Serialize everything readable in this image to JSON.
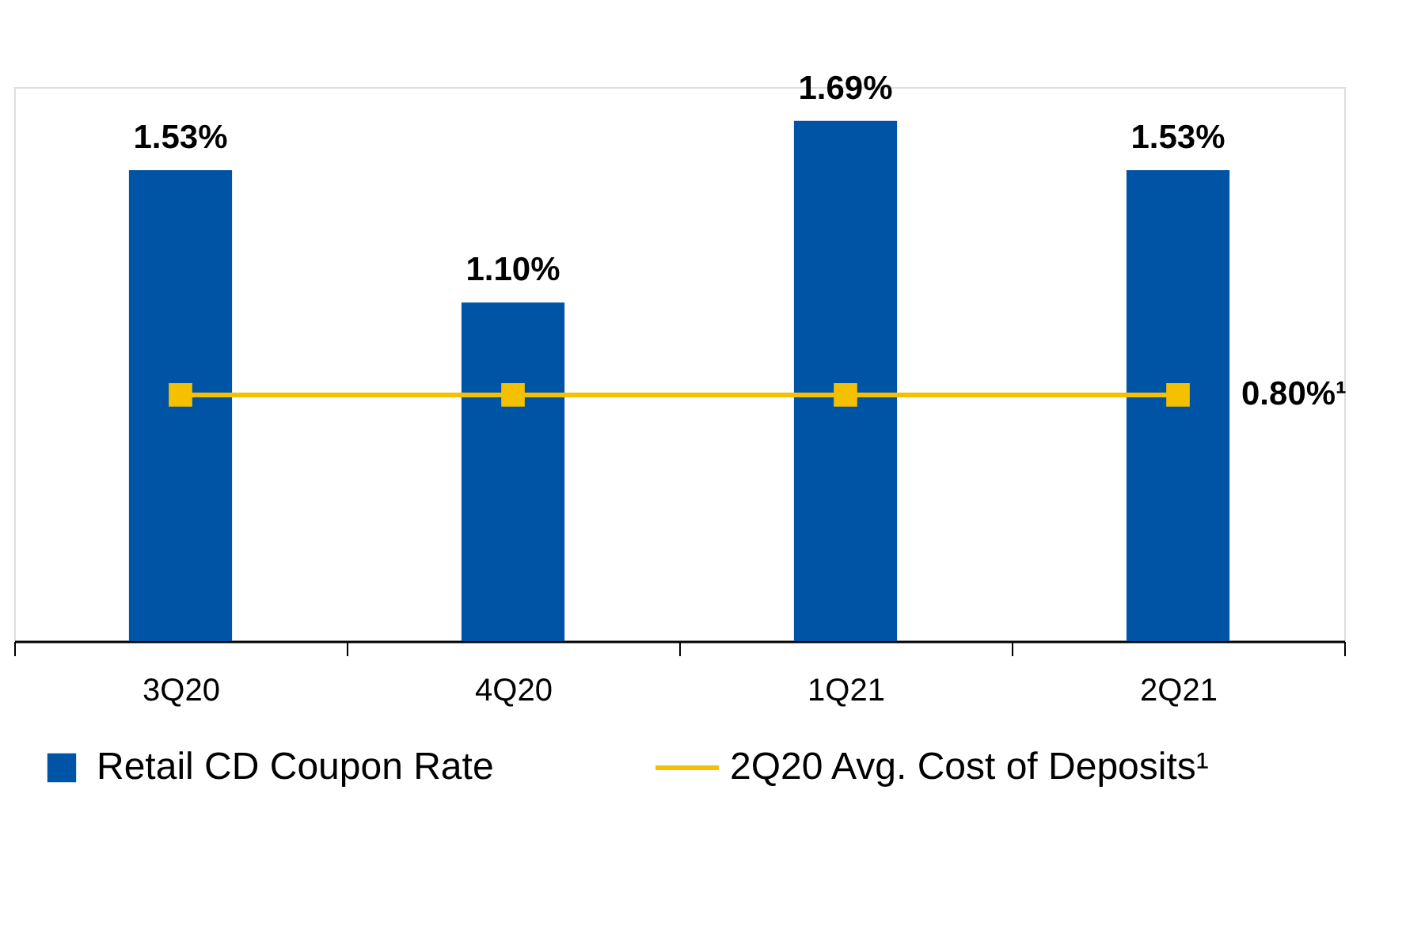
{
  "chart_data": {
    "type": "bar",
    "categories": [
      "3Q20",
      "4Q20",
      "1Q21",
      "2Q21"
    ],
    "series": [
      {
        "name": "Retail CD Coupon Rate",
        "color": "#0054a6",
        "values": [
          1.53,
          1.1,
          1.69,
          1.53
        ],
        "value_labels": [
          "1.53%",
          "1.10%",
          "1.69%",
          "1.53%"
        ]
      },
      {
        "name": "2Q20 Avg. Cost of Deposits¹",
        "type": "line",
        "color": "#f5c000",
        "values": [
          0.8,
          0.8,
          0.8,
          0.8
        ],
        "value_labels": [
          null,
          null,
          null,
          "0.80%¹"
        ]
      }
    ],
    "marker": "square",
    "legend": "bottom",
    "grid": false,
    "tick_labels": "x"
  }
}
